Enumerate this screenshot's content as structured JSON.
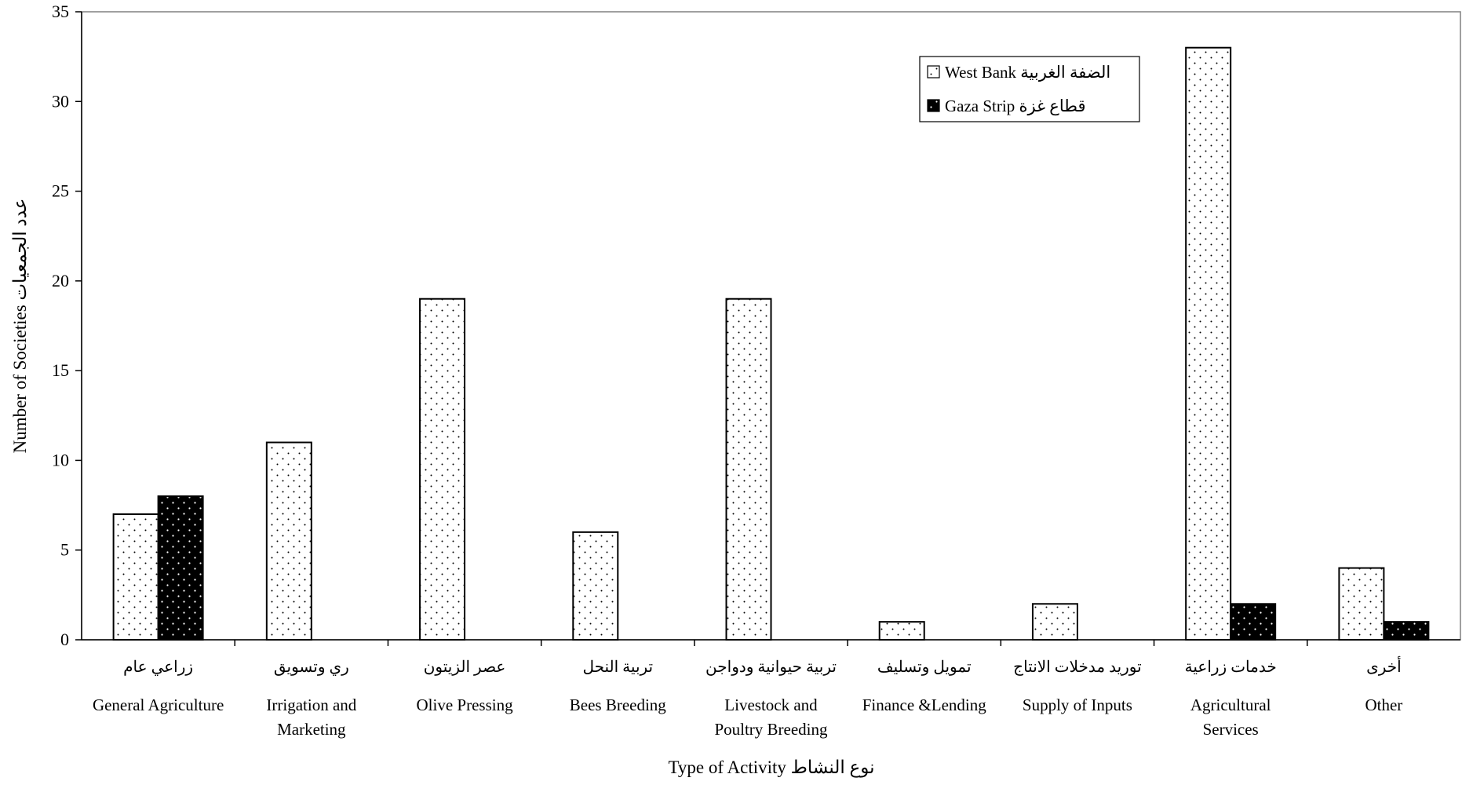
{
  "chart_data": {
    "type": "bar",
    "title": "",
    "xlabel": "Type of Activity نوع النشاط",
    "ylabel": "Number of Societies عدد الجمعيات",
    "ylim": [
      0,
      35
    ],
    "yticks": [
      0,
      5,
      10,
      15,
      20,
      25,
      30,
      35
    ],
    "grid": false,
    "legend_position": "top-right",
    "categories": [
      {
        "ar": "زراعي عام",
        "en": [
          "General Agriculture"
        ]
      },
      {
        "ar": "ري وتسويق",
        "en": [
          "Irrigation and",
          "Marketing"
        ]
      },
      {
        "ar": "عصر الزيتون",
        "en": [
          "Olive Pressing"
        ]
      },
      {
        "ar": "تربية النحل",
        "en": [
          "Bees Breeding"
        ]
      },
      {
        "ar": "تربية حيوانية ودواجن",
        "en": [
          "Livestock and",
          "Poultry Breeding"
        ]
      },
      {
        "ar": "تمويل وتسليف",
        "en": [
          "Finance &Lending"
        ]
      },
      {
        "ar": "توريد مدخلات الانتاج",
        "en": [
          "Supply of Inputs"
        ]
      },
      {
        "ar": "خدمات زراعية",
        "en": [
          "Agricultural",
          "Services"
        ]
      },
      {
        "ar": "أخرى",
        "en": [
          "Other"
        ]
      }
    ],
    "series": [
      {
        "name": "West Bank الضفة الغربية",
        "values": [
          7,
          11,
          19,
          6,
          19,
          1,
          2,
          33,
          4
        ],
        "color": "#ffffff",
        "pattern": "sparse-dots"
      },
      {
        "name": "Gaza Strip قطاع غزة",
        "values": [
          8,
          0,
          0,
          0,
          0,
          0,
          0,
          2,
          1
        ],
        "color": "#000000",
        "pattern": "dense-dots"
      }
    ]
  }
}
